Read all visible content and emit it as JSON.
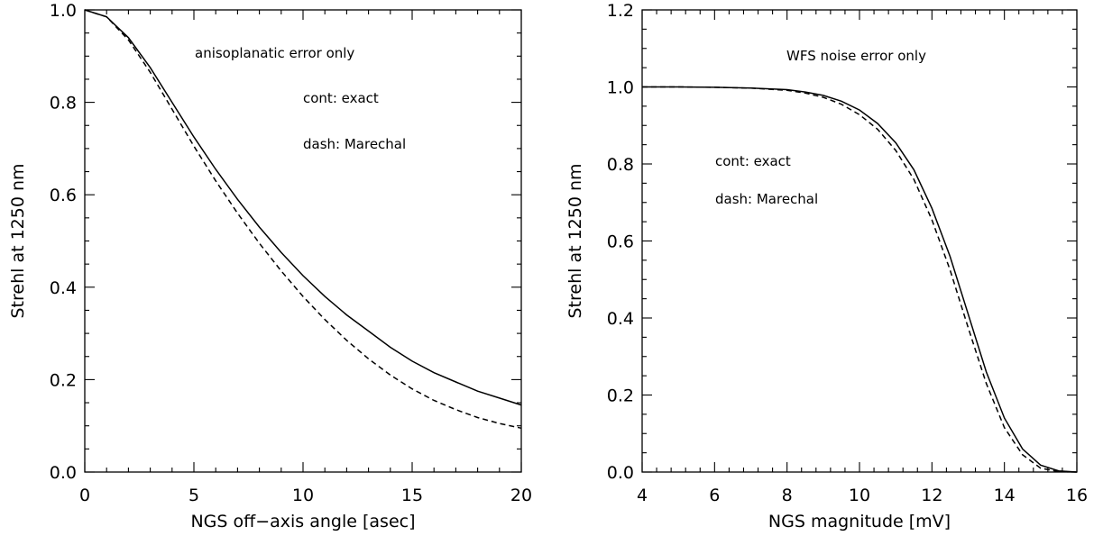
{
  "chart_data": [
    {
      "type": "line",
      "xlabel": "NGS off−axis angle [asec]",
      "ylabel": "Strehl at 1250 nm",
      "xlim": [
        0,
        20
      ],
      "ylim": [
        0,
        1.0
      ],
      "xticks": [
        0,
        5,
        10,
        15,
        20
      ],
      "xtick_labels": [
        "0",
        "5",
        "10",
        "15",
        "20"
      ],
      "yticks": [
        0,
        0.2,
        0.4,
        0.6,
        0.8,
        1.0
      ],
      "ytick_labels": [
        "0.0",
        "0.2",
        "0.4",
        "0.6",
        "0.8",
        "1.0"
      ],
      "annotations": [
        "anisoplanatic error only",
        "cont: exact",
        "dash: Marechal"
      ],
      "series": [
        {
          "style": "solid",
          "x": [
            0,
            1,
            2,
            3,
            4,
            5,
            6,
            7,
            8,
            9,
            10,
            11,
            12,
            13,
            14,
            15,
            16,
            17,
            18,
            19,
            20
          ],
          "y": [
            1.0,
            0.985,
            0.94,
            0.875,
            0.8,
            0.725,
            0.655,
            0.59,
            0.53,
            0.475,
            0.425,
            0.38,
            0.34,
            0.305,
            0.27,
            0.24,
            0.215,
            0.195,
            0.175,
            0.16,
            0.145
          ]
        },
        {
          "style": "dashed",
          "x": [
            0,
            1,
            2,
            3,
            4,
            5,
            6,
            7,
            8,
            9,
            10,
            11,
            12,
            13,
            14,
            15,
            16,
            17,
            18,
            19,
            20
          ],
          "y": [
            1.0,
            0.985,
            0.935,
            0.865,
            0.785,
            0.705,
            0.63,
            0.56,
            0.495,
            0.435,
            0.38,
            0.33,
            0.285,
            0.245,
            0.21,
            0.18,
            0.155,
            0.135,
            0.118,
            0.105,
            0.095
          ]
        }
      ]
    },
    {
      "type": "line",
      "xlabel": "NGS magnitude [mV]",
      "ylabel": "Strehl at 1250 nm",
      "xlim": [
        4,
        16
      ],
      "ylim": [
        0,
        1.2
      ],
      "xticks": [
        4,
        6,
        8,
        10,
        12,
        14,
        16
      ],
      "xtick_labels": [
        "4",
        "6",
        "8",
        "10",
        "12",
        "14",
        "16"
      ],
      "yticks": [
        0,
        0.2,
        0.4,
        0.6,
        0.8,
        1.0,
        1.2
      ],
      "ytick_labels": [
        "0.0",
        "0.2",
        "0.4",
        "0.6",
        "0.8",
        "1.0",
        "1.2"
      ],
      "annotations": [
        "WFS noise error only",
        "cont: exact",
        "dash: Marechal"
      ],
      "series": [
        {
          "style": "solid",
          "x": [
            4,
            5,
            6,
            7,
            8,
            8.5,
            9,
            9.5,
            10,
            10.5,
            11,
            11.5,
            12,
            12.5,
            13,
            13.5,
            14,
            14.5,
            15,
            15.5,
            16
          ],
          "y": [
            1.0,
            1.0,
            0.999,
            0.997,
            0.993,
            0.987,
            0.978,
            0.963,
            0.94,
            0.905,
            0.855,
            0.785,
            0.685,
            0.56,
            0.41,
            0.26,
            0.14,
            0.06,
            0.018,
            0.003,
            0.0
          ]
        },
        {
          "style": "dashed",
          "x": [
            4,
            5,
            6,
            7,
            8,
            8.5,
            9,
            9.5,
            10,
            10.5,
            11,
            11.5,
            12,
            12.5,
            13,
            13.5,
            14,
            14.5,
            15,
            15.5,
            16
          ],
          "y": [
            1.0,
            1.0,
            0.999,
            0.997,
            0.991,
            0.984,
            0.973,
            0.955,
            0.928,
            0.89,
            0.835,
            0.76,
            0.655,
            0.525,
            0.375,
            0.23,
            0.115,
            0.045,
            0.01,
            0.001,
            0.0
          ]
        }
      ]
    }
  ]
}
